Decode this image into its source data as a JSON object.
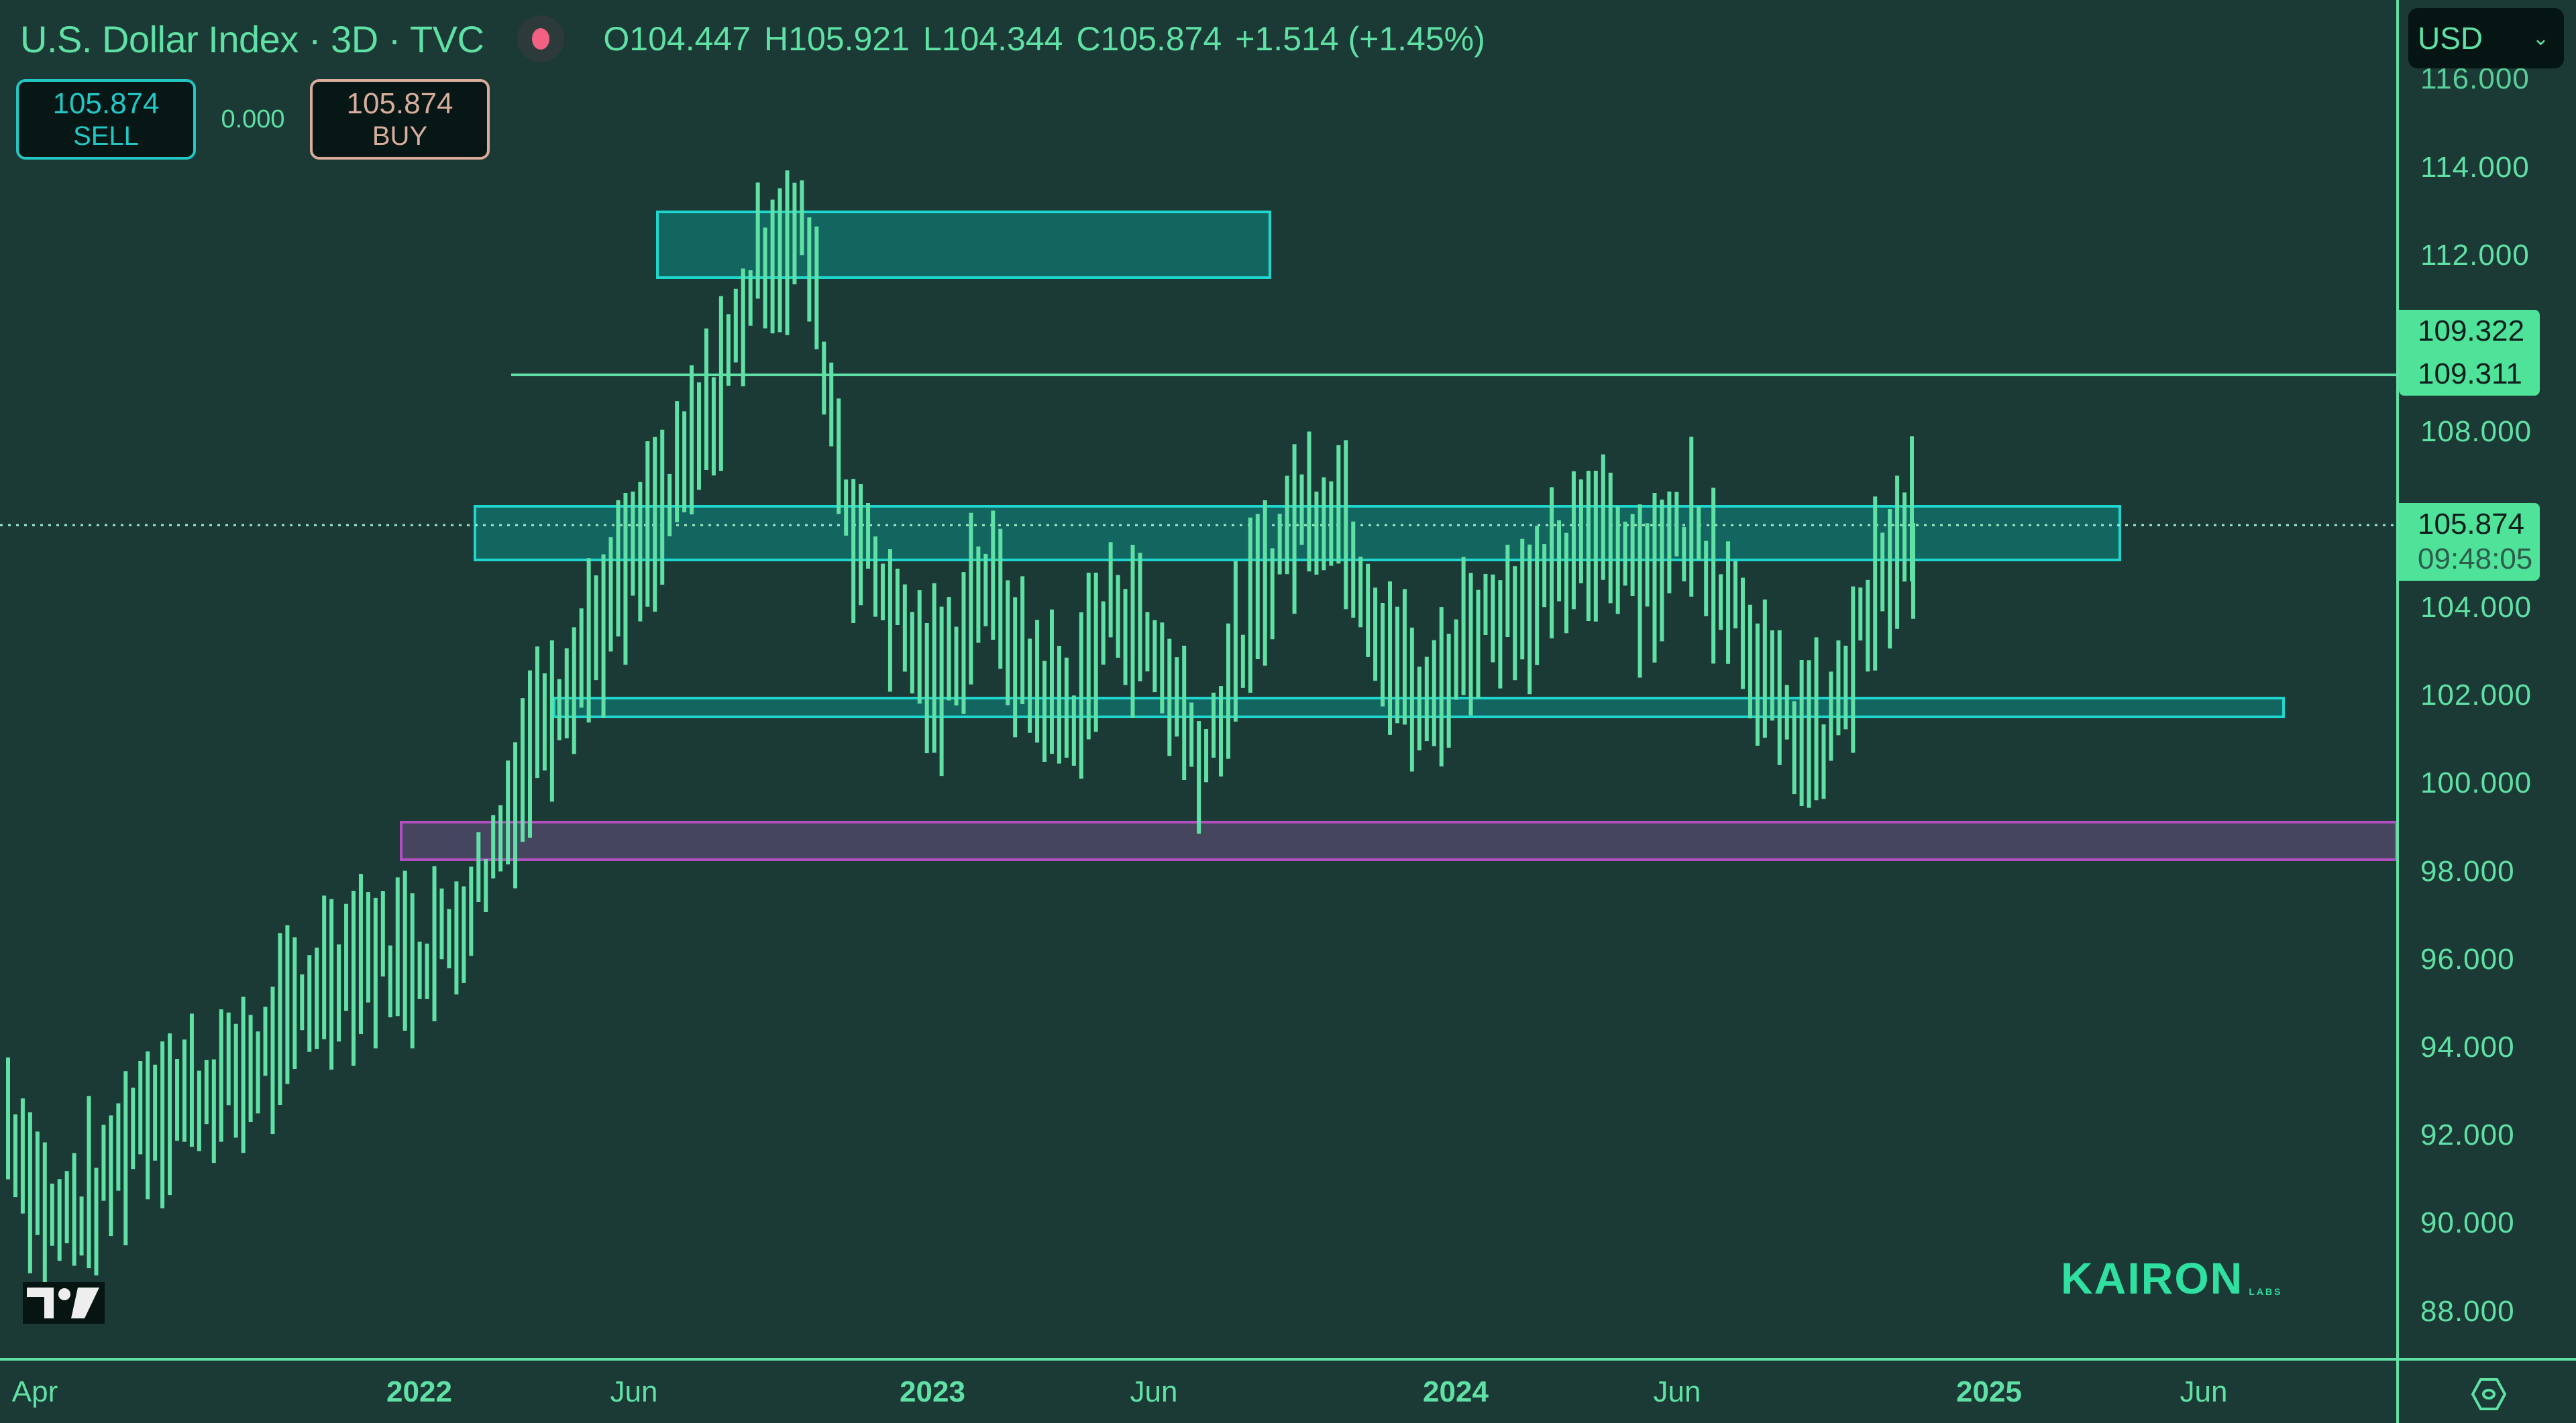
{
  "header": {
    "title": "U.S. Dollar Index · 3D · TVC",
    "status_icon": "market-live-dot",
    "ohlc": {
      "open": "O104.447",
      "high": "H105.921",
      "low": "L104.344",
      "close": "C105.874",
      "change": "+1.514 (+1.45%)"
    }
  },
  "trade": {
    "sell_price": "105.874",
    "sell_label": "SELL",
    "spread": "0.000",
    "buy_price": "105.874",
    "buy_label": "BUY"
  },
  "price_scale": {
    "currency": "USD",
    "ticks": [
      "116.000",
      "114.000",
      "112.000",
      "108.000",
      "104.000",
      "102.000",
      "100.000",
      "98.000",
      "96.000",
      "94.000",
      "92.000",
      "90.000",
      "88.000"
    ],
    "line_tag_top": "109.322",
    "line_tag_bottom": "109.311",
    "last_price": "105.874",
    "countdown": "09:48:05"
  },
  "time_scale": {
    "ticks": [
      {
        "label": "Apr",
        "year": false
      },
      {
        "label": "2022",
        "year": true
      },
      {
        "label": "Jun",
        "year": false
      },
      {
        "label": "2023",
        "year": true
      },
      {
        "label": "Jun",
        "year": false
      },
      {
        "label": "2024",
        "year": true
      },
      {
        "label": "Jun",
        "year": false
      },
      {
        "label": "2025",
        "year": true
      },
      {
        "label": "Jun",
        "year": false
      }
    ]
  },
  "branding": {
    "watermark": "KAIRON",
    "watermark_sub": "LABS",
    "platform_logo": "tradingview-logo"
  },
  "colors": {
    "background": "#1b3a35",
    "bars": "#5fe0a4",
    "zone_fill": "#136660",
    "zone_border": "#1fd6cf",
    "demand_fill": "#45465e",
    "demand_border": "#b24fc0",
    "last_price_tag": "#4fe39a",
    "live_dot": "#f26183",
    "sell": "#22c7c4",
    "buy": "#d8ad9c"
  },
  "chart_data": {
    "type": "ohlc",
    "title": "U.S. Dollar Index · 3D · TVC",
    "timeframe": "3D",
    "xlabel": "",
    "ylabel": "USD",
    "ylim": [
      87.5,
      116.0
    ],
    "x_tick_labels": [
      "Apr 2021",
      "2022",
      "Jun 2022",
      "2023",
      "Jun 2023",
      "2024",
      "Jun 2024",
      "2025",
      "Jun 2025"
    ],
    "last": {
      "open": 104.447,
      "high": 105.921,
      "low": 104.344,
      "close": 105.874,
      "change": 1.514,
      "change_pct": 1.45
    },
    "series_close_approx": [
      {
        "period": "2021-04",
        "value": 92.4
      },
      {
        "period": "2021-05",
        "value": 90.0
      },
      {
        "period": "2021-06",
        "value": 90.5
      },
      {
        "period": "2021-07",
        "value": 92.6
      },
      {
        "period": "2021-08",
        "value": 92.9
      },
      {
        "period": "2021-09",
        "value": 93.2
      },
      {
        "period": "2021-10",
        "value": 94.0
      },
      {
        "period": "2021-11",
        "value": 95.5
      },
      {
        "period": "2021-12",
        "value": 96.2
      },
      {
        "period": "2022-01",
        "value": 96.0
      },
      {
        "period": "2022-02",
        "value": 96.5
      },
      {
        "period": "2022-03",
        "value": 98.5
      },
      {
        "period": "2022-04",
        "value": 101.5
      },
      {
        "period": "2022-05",
        "value": 103.0
      },
      {
        "period": "2022-06",
        "value": 104.8
      },
      {
        "period": "2022-07",
        "value": 106.5
      },
      {
        "period": "2022-08",
        "value": 108.8
      },
      {
        "period": "2022-09",
        "value": 112.0
      },
      {
        "period": "2022-10",
        "value": 112.5
      },
      {
        "period": "2022-11",
        "value": 106.0
      },
      {
        "period": "2022-12",
        "value": 104.0
      },
      {
        "period": "2023-01",
        "value": 102.0
      },
      {
        "period": "2023-02",
        "value": 104.8
      },
      {
        "period": "2023-03",
        "value": 102.5
      },
      {
        "period": "2023-04",
        "value": 101.5
      },
      {
        "period": "2023-05",
        "value": 104.2
      },
      {
        "period": "2023-06",
        "value": 102.8
      },
      {
        "period": "2023-07",
        "value": 100.5
      },
      {
        "period": "2023-08",
        "value": 103.5
      },
      {
        "period": "2023-09",
        "value": 106.0
      },
      {
        "period": "2023-10",
        "value": 106.5
      },
      {
        "period": "2023-11",
        "value": 103.5
      },
      {
        "period": "2023-12",
        "value": 101.5
      },
      {
        "period": "2024-01",
        "value": 103.5
      },
      {
        "period": "2024-02",
        "value": 104.2
      },
      {
        "period": "2024-03",
        "value": 104.5
      },
      {
        "period": "2024-04",
        "value": 106.0
      },
      {
        "period": "2024-05",
        "value": 104.8
      },
      {
        "period": "2024-06",
        "value": 105.8
      },
      {
        "period": "2024-07",
        "value": 104.2
      },
      {
        "period": "2024-08",
        "value": 101.5
      },
      {
        "period": "2024-09",
        "value": 100.8
      },
      {
        "period": "2024-10",
        "value": 103.8
      },
      {
        "period": "2024-11",
        "value": 105.874
      }
    ],
    "annotations": [
      {
        "type": "zone",
        "label": "supply zone (high)",
        "y_top": 112.95,
        "y_bottom": 111.45,
        "x_start": "2022-06",
        "x_end": "2023-06",
        "color": "#1fd6cf"
      },
      {
        "type": "hline",
        "label": "resistance line",
        "y": 109.31,
        "x_start": "2022-04",
        "color": "#5fe0a4"
      },
      {
        "type": "zone",
        "label": "range top zone",
        "y_top": 106.3,
        "y_bottom": 105.05,
        "x_start": "2022-03",
        "x_end": "2025-04",
        "color": "#1fd6cf"
      },
      {
        "type": "zone",
        "label": "range bottom zone",
        "y_top": 101.95,
        "y_bottom": 101.55,
        "x_start": "2022-04",
        "x_end": "2025-07",
        "color": "#1fd6cf"
      },
      {
        "type": "zone",
        "label": "demand zone",
        "y_top": 99.2,
        "y_bottom": 98.3,
        "x_start": "2022-01",
        "x_end": "2025-09",
        "color": "#b24fc0"
      },
      {
        "type": "hline",
        "label": "last price",
        "y": 105.874,
        "style": "dotted"
      }
    ],
    "grid": false,
    "legend": "none"
  }
}
